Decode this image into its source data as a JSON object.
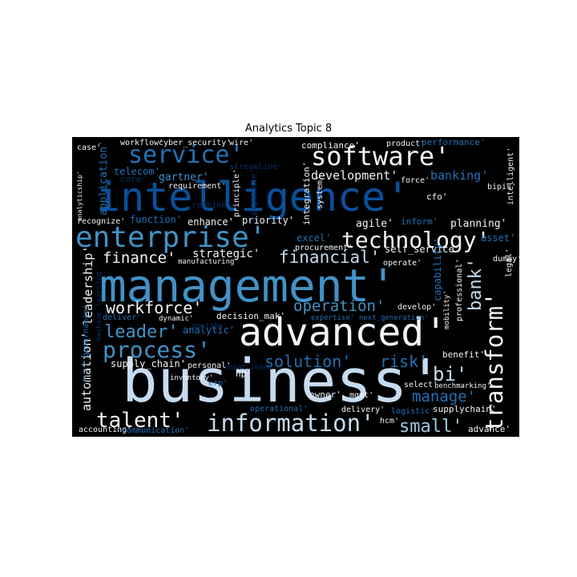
{
  "chart_data": {
    "type": "wordcloud",
    "title": "Analytics Topic 8",
    "background": "#000000",
    "palette": {
      "white": "#f0f4f8",
      "pale": "#c6dbef",
      "light": "#9ecae1",
      "mid": "#6baed6",
      "blue": "#4292c6",
      "royal": "#2171b5",
      "deep": "#08519c",
      "navy": "#08306b"
    },
    "words": [
      {
        "text": "business'",
        "color": "pale"
      },
      {
        "text": "management'",
        "color": "blue"
      },
      {
        "text": "intelligence'",
        "color": "deep"
      },
      {
        "text": "advanced'",
        "color": "white"
      },
      {
        "text": "enterprise'",
        "color": "blue"
      },
      {
        "text": "software'",
        "color": "white"
      },
      {
        "text": "service'",
        "color": "royal"
      },
      {
        "text": "technology'",
        "color": "white"
      },
      {
        "text": "transform'",
        "color": "white"
      },
      {
        "text": "information'",
        "color": "pale"
      },
      {
        "text": "process'",
        "color": "blue"
      },
      {
        "text": "talent'",
        "color": "white"
      },
      {
        "text": "leader'",
        "color": "blue"
      },
      {
        "text": "workforce'",
        "color": "white"
      },
      {
        "text": "operation'",
        "color": "blue"
      },
      {
        "text": "financial'",
        "color": "pale"
      },
      {
        "text": "finance'",
        "color": "white"
      },
      {
        "text": "solution'",
        "color": "royal"
      },
      {
        "text": "risk'",
        "color": "royal"
      },
      {
        "text": "bi'",
        "color": "pale"
      },
      {
        "text": "bank'",
        "color": "pale"
      },
      {
        "text": "small'",
        "color": "light"
      },
      {
        "text": "manage'",
        "color": "royal"
      },
      {
        "text": "development'",
        "color": "white"
      },
      {
        "text": "banking'",
        "color": "royal"
      },
      {
        "text": "strategic'",
        "color": "white"
      },
      {
        "text": "automation'",
        "color": "white"
      },
      {
        "text": "leadership'",
        "color": "white"
      },
      {
        "text": "gartner'",
        "color": "blue"
      },
      {
        "text": "telecom'",
        "color": "royal"
      },
      {
        "text": "application'",
        "color": "royal"
      },
      {
        "text": "agile'",
        "color": "white"
      },
      {
        "text": "planning'",
        "color": "white"
      },
      {
        "text": "self_service'",
        "color": "white"
      },
      {
        "text": "excel'",
        "color": "royal"
      },
      {
        "text": "enhance'",
        "color": "white"
      },
      {
        "text": "priority'",
        "color": "white"
      },
      {
        "text": "function'",
        "color": "royal"
      },
      {
        "text": "capability'",
        "color": "royal"
      },
      {
        "text": "supply_chain'",
        "color": "white"
      },
      {
        "text": "decision_mak'",
        "color": "white"
      },
      {
        "text": "analytic'",
        "color": "royal"
      },
      {
        "text": "compliance'",
        "color": "white"
      },
      {
        "text": "product'",
        "color": "white"
      },
      {
        "text": "performance'",
        "color": "royal"
      },
      {
        "text": "workflow'",
        "color": "white"
      },
      {
        "text": "cyber_security'",
        "color": "white"
      },
      {
        "text": "wire'",
        "color": "white"
      },
      {
        "text": "case'",
        "color": "white"
      },
      {
        "text": "core'",
        "color": "navy"
      },
      {
        "text": "requirement'",
        "color": "white"
      },
      {
        "text": "streamline'",
        "color": "navy"
      },
      {
        "text": "principle'",
        "color": "white"
      },
      {
        "text": "corporate'",
        "color": "navy"
      },
      {
        "text": "integration'",
        "color": "white"
      },
      {
        "text": "system'",
        "color": "white"
      },
      {
        "text": "cfo'",
        "color": "white"
      },
      {
        "text": "force'",
        "color": "white"
      },
      {
        "text": "bipic'",
        "color": "white"
      },
      {
        "text": "intelligent'",
        "color": "white"
      },
      {
        "text": "analyticship'",
        "color": "white"
      },
      {
        "text": "rethink'",
        "color": "navy"
      },
      {
        "text": "recognize'",
        "color": "white"
      },
      {
        "text": "inform'",
        "color": "royal"
      },
      {
        "text": "asset'",
        "color": "royal"
      },
      {
        "text": "procurement'",
        "color": "white"
      },
      {
        "text": "manufacturing'",
        "color": "white"
      },
      {
        "text": "operate'",
        "color": "white"
      },
      {
        "text": "dummy'",
        "color": "white"
      },
      {
        "text": "legal'",
        "color": "white"
      },
      {
        "text": "governance'",
        "color": "royal"
      },
      {
        "text": "machine_learning'",
        "color": "navy"
      },
      {
        "text": "develop'",
        "color": "white"
      },
      {
        "text": "professional'",
        "color": "white"
      },
      {
        "text": "mobility'",
        "color": "white"
      },
      {
        "text": "deliver'",
        "color": "royal"
      },
      {
        "text": "dynamic'",
        "color": "white"
      },
      {
        "text": "pentaho'",
        "color": "navy"
      },
      {
        "text": "expertise'",
        "color": "royal"
      },
      {
        "text": "next_generation'",
        "color": "royal"
      },
      {
        "text": "benefit'",
        "color": "white"
      },
      {
        "text": "personal'",
        "color": "white"
      },
      {
        "text": "cheat_sheet'",
        "color": "navy"
      },
      {
        "text": "hp'",
        "color": "white"
      },
      {
        "text": "erp'",
        "color": "royal"
      },
      {
        "text": "inventory'",
        "color": "white"
      },
      {
        "text": "select'",
        "color": "white"
      },
      {
        "text": "benchmarking'",
        "color": "white"
      },
      {
        "text": "owner'",
        "color": "white"
      },
      {
        "text": "mgmt'",
        "color": "white"
      },
      {
        "text": "supplychain'",
        "color": "white"
      },
      {
        "text": "logistic'",
        "color": "royal"
      },
      {
        "text": "delivery'",
        "color": "white"
      },
      {
        "text": "hcm'",
        "color": "white"
      },
      {
        "text": "operational'",
        "color": "royal"
      },
      {
        "text": "advance'",
        "color": "white"
      },
      {
        "text": "accounting'",
        "color": "white"
      },
      {
        "text": "communication'",
        "color": "royal"
      },
      {
        "text": "recruit'",
        "color": "navy"
      }
    ]
  }
}
